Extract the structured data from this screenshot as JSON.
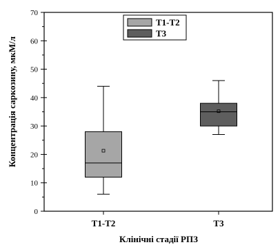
{
  "chart_data": {
    "type": "box",
    "ylabel": "Концентрація саркозину, мкМ/л",
    "xlabel": "Клінічні стадії РПЗ",
    "ylim": [
      0,
      70
    ],
    "y_ticks": [
      "0",
      "10",
      "20",
      "30",
      "40",
      "50",
      "60",
      "70"
    ],
    "y_tick_values": [
      0,
      10,
      20,
      30,
      40,
      50,
      60,
      70
    ],
    "categories": [
      "T1-T2",
      "T3"
    ],
    "series": [
      {
        "name": "T1-T2",
        "color": "#a6a6a6",
        "min": 6,
        "q1": 12,
        "median": 17,
        "q3": 28,
        "max": 44,
        "mean": 21.3
      },
      {
        "name": "T3",
        "color": "#5e5e5e",
        "min": 27,
        "q1": 30,
        "median": 35,
        "q3": 38,
        "max": 46,
        "mean": 35.2
      }
    ],
    "legend_position": "top-center",
    "grid": false
  }
}
